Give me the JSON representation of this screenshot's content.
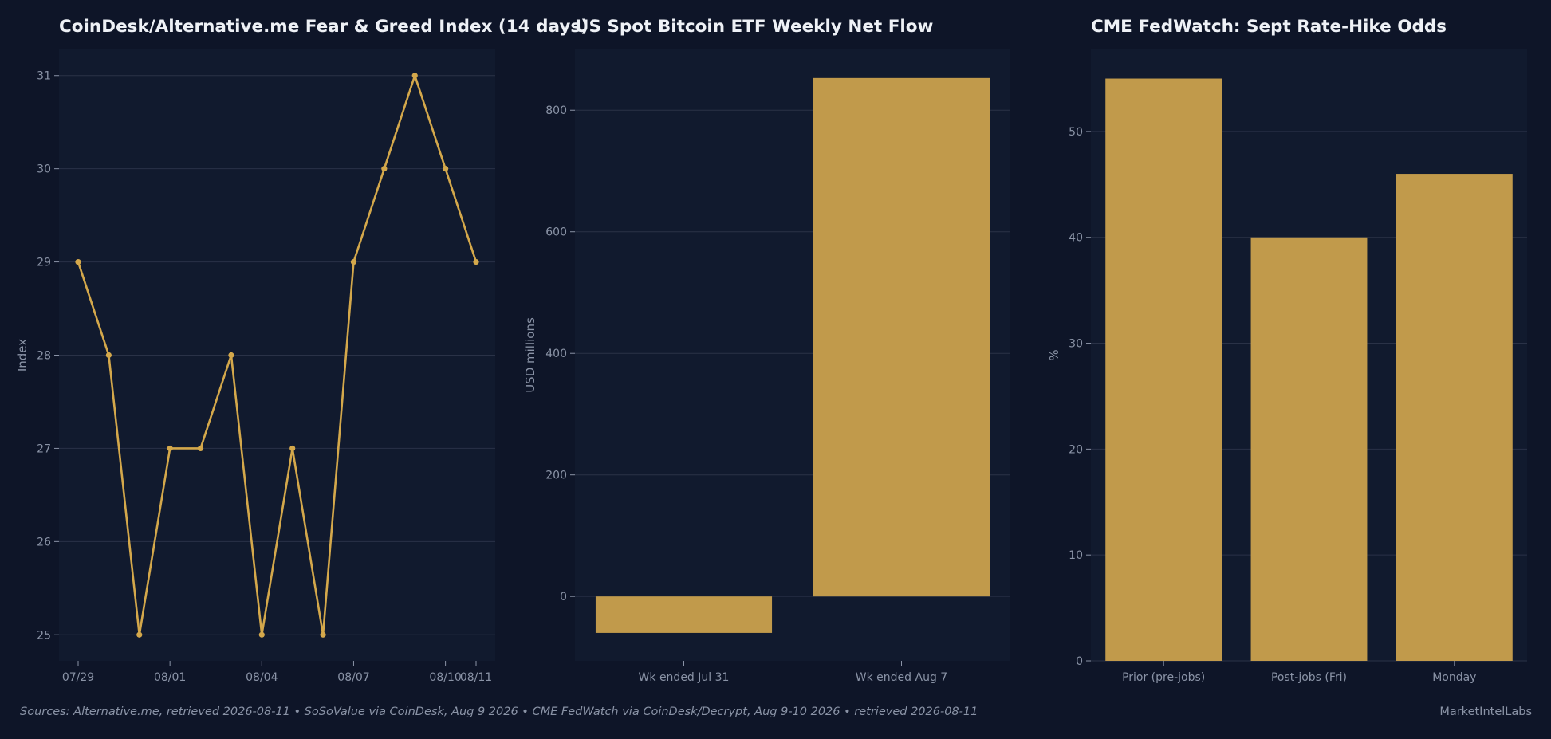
{
  "theme": {
    "background": "#0e1528",
    "plot_background": "#111a2e",
    "grid": "#2a3247",
    "series_color": "#d4a84b",
    "bar_color": "#c19a4b",
    "title_color": "#eef1f6",
    "tick_color": "#8a93a6"
  },
  "footer": {
    "sources": "Sources: Alternative.me, retrieved 2026-08-11  •  SoSoValue via CoinDesk, Aug 9 2026  •  CME FedWatch via CoinDesk/Decrypt, Aug 9-10 2026  •  retrieved 2026-08-11",
    "brand": "MarketIntelLabs"
  },
  "chart_data": [
    {
      "type": "line",
      "title": "CoinDesk/Alternative.me Fear & Greed Index (14 days)",
      "xlabel": "",
      "ylabel": "Index",
      "x": [
        "07/29",
        "07/30",
        "07/31",
        "08/01",
        "08/02",
        "08/03",
        "08/04",
        "08/05",
        "08/06",
        "08/07",
        "08/08",
        "08/09",
        "08/10",
        "08/11"
      ],
      "x_tick_labels": [
        "07/29",
        "08/01",
        "08/04",
        "08/07",
        "08/10",
        "08/11"
      ],
      "values": [
        29,
        28,
        25,
        27,
        27,
        28,
        25,
        27,
        25,
        29,
        30,
        31,
        30,
        29
      ],
      "ylim": [
        24.72,
        31.28
      ],
      "yticks": [
        25,
        26,
        27,
        28,
        29,
        30,
        31
      ],
      "grid": true
    },
    {
      "type": "bar",
      "title": "US Spot Bitcoin ETF Weekly Net Flow",
      "xlabel": "",
      "ylabel": "USD millions",
      "categories": [
        "Wk ended Jul 31",
        "Wk ended Aug 7"
      ],
      "values": [
        -60,
        853
      ],
      "ylim": [
        -106,
        900
      ],
      "yticks": [
        0,
        200,
        400,
        600,
        800
      ],
      "grid": true
    },
    {
      "type": "bar",
      "title": "CME FedWatch: Sept Rate-Hike Odds",
      "xlabel": "",
      "ylabel": "%",
      "categories": [
        "Prior (pre-jobs)",
        "Post-jobs (Fri)",
        "Monday"
      ],
      "values": [
        55,
        40,
        46
      ],
      "ylim": [
        0,
        57.75
      ],
      "yticks": [
        0,
        10,
        20,
        30,
        40,
        50
      ],
      "grid": true
    }
  ]
}
